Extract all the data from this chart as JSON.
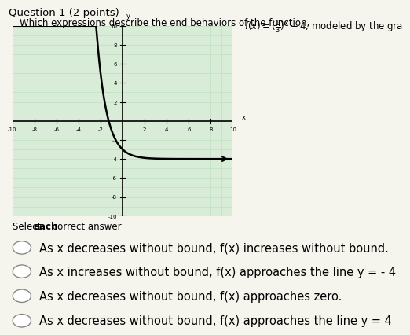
{
  "title_line1": "Question 1 (2 points)",
  "title_line2": "Which expressions describe the end behaviors of the function, ",
  "xlim": [
    -10,
    10
  ],
  "ylim": [
    -10,
    10
  ],
  "curve_color": "#000000",
  "grid_color": "#b8ddb8",
  "bg_color": "#d8ecd8",
  "axis_color": "#000000",
  "select_label_normal": "Select ",
  "select_label_bold": "each",
  "select_label_end": " correct answer",
  "options": [
    "As x decreases without bound, f(x) increases without bound.",
    "As x increases without bound, f(x) approaches the line y = - 4",
    "As x decreases without bound, f(x) approaches zero.",
    "As x decreases without bound, f(x) approaches the line y = 4"
  ],
  "font_size_options": 10.5,
  "font_size_title1": 9.5,
  "font_size_title2": 8.5,
  "font_size_select": 8.5,
  "page_bg": "#f5f5ee"
}
